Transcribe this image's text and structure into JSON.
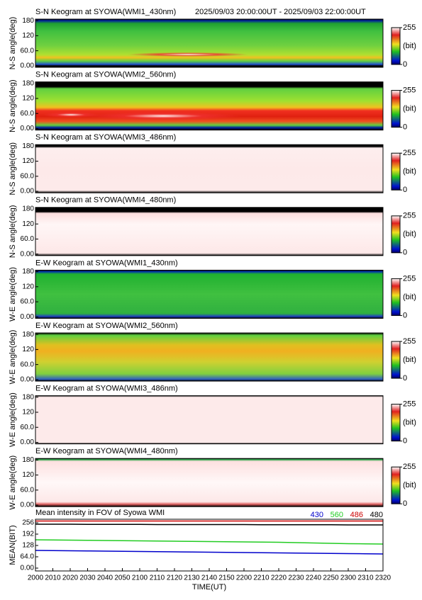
{
  "chart_data": [
    {
      "type": "heatmap",
      "title": "S-N Keogram at SYOWA(WMI1_430nm)",
      "subtitle": "2025/09/03 20:00:00UT - 2025/09/03 22:00:00UT",
      "ylabel": "N-S angle(deg)",
      "ylim": [
        -6,
        186
      ],
      "yticks": [
        {
          "value": 0,
          "label": "0.00"
        },
        {
          "value": 60,
          "label": "60.0"
        },
        120,
        180
      ],
      "colorbar": {
        "label": "(bit)",
        "lim": [
          0,
          255
        ],
        "ticks": [
          0,
          255
        ]
      }
    },
    {
      "type": "heatmap",
      "title": "S-N Keogram at SYOWA(WMI2_560nm)",
      "ylabel": "N-S angle(deg)",
      "ylim": [
        -6,
        186
      ],
      "yticks": [
        {
          "value": 0,
          "label": "0.00"
        },
        {
          "value": 60,
          "label": "60.0"
        },
        120,
        180
      ],
      "colorbar": {
        "label": "(bit)",
        "lim": [
          0,
          255
        ],
        "ticks": [
          0,
          255
        ]
      }
    },
    {
      "type": "heatmap",
      "title": "S-N Keogram at SYOWA(WMI3_486nm)",
      "ylabel": "N-S angle(deg)",
      "ylim": [
        -6,
        186
      ],
      "yticks": [
        {
          "value": 0,
          "label": "0.00"
        },
        {
          "value": 60,
          "label": "60.0"
        },
        120,
        180
      ],
      "colorbar": {
        "label": "(bit)",
        "lim": [
          0,
          255
        ],
        "ticks": [
          0,
          255
        ]
      }
    },
    {
      "type": "heatmap",
      "title": "S-N Keogram at SYOWA(WMI4_480nm)",
      "ylabel": "N-S angle(deg)",
      "ylim": [
        -6,
        186
      ],
      "yticks": [
        {
          "value": 0,
          "label": "0.00"
        },
        {
          "value": 60,
          "label": "60.0"
        },
        120,
        180
      ],
      "colorbar": {
        "label": "(bit)",
        "lim": [
          0,
          255
        ],
        "ticks": [
          0,
          255
        ]
      }
    },
    {
      "type": "heatmap",
      "title": "E-W Keogram at SYOWA(WMI1_430nm)",
      "ylabel": "W-E angle(deg)",
      "ylim": [
        -6,
        186
      ],
      "yticks": [
        {
          "value": 0,
          "label": "0.00"
        },
        {
          "value": 60,
          "label": "60.0"
        },
        120,
        180
      ],
      "colorbar": {
        "label": "(bit)",
        "lim": [
          0,
          255
        ],
        "ticks": [
          0,
          255
        ]
      }
    },
    {
      "type": "heatmap",
      "title": "E-W Keogram at SYOWA(WMI2_560nm)",
      "ylabel": "W-E angle(deg)",
      "ylim": [
        -6,
        186
      ],
      "yticks": [
        {
          "value": 0,
          "label": "0.00"
        },
        {
          "value": 60,
          "label": "60.0"
        },
        120,
        180
      ],
      "colorbar": {
        "label": "(bit)",
        "lim": [
          0,
          255
        ],
        "ticks": [
          0,
          255
        ]
      }
    },
    {
      "type": "heatmap",
      "title": "E-W Keogram at SYOWA(WMI3_486nm)",
      "ylabel": "W-E angle(deg)",
      "ylim": [
        -6,
        186
      ],
      "yticks": [
        {
          "value": 0,
          "label": "0.00"
        },
        {
          "value": 60,
          "label": "60.0"
        },
        120,
        180
      ],
      "colorbar": {
        "label": "(bit)",
        "lim": [
          0,
          255
        ],
        "ticks": [
          0,
          255
        ]
      }
    },
    {
      "type": "heatmap",
      "title": "E-W Keogram at SYOWA(WMI4_480nm)",
      "ylabel": "W-E angle(deg)",
      "ylim": [
        -6,
        186
      ],
      "yticks": [
        {
          "value": 0,
          "label": "0.00"
        },
        {
          "value": 60,
          "label": "60.0"
        },
        120,
        180
      ],
      "colorbar": {
        "label": "(bit)",
        "lim": [
          0,
          255
        ],
        "ticks": [
          0,
          255
        ]
      }
    },
    {
      "type": "line",
      "title": "Mean intensity in FOV of Syowa WMI",
      "xlabel": "TIME(UT)",
      "ylabel": "MEAN(BIT)",
      "x": [
        "2000",
        "2010",
        "2020",
        "2030",
        "2040",
        "2050",
        "2100",
        "2110",
        "2120",
        "2130",
        "2140",
        "2150",
        "2200",
        "2210",
        "2220",
        "2230",
        "2240",
        "2250",
        "2300",
        "2310",
        "2320"
      ],
      "ylim": [
        -16,
        276
      ],
      "yticks": [
        {
          "value": 0,
          "label": "0.00"
        },
        {
          "value": 64,
          "label": "64.0"
        },
        128,
        192,
        256
      ],
      "series": [
        {
          "name": "430",
          "color": "#0000cc",
          "values": [
            100,
            99,
            98,
            97,
            96,
            95,
            94,
            93,
            92,
            91,
            90,
            89,
            88,
            87,
            86,
            85,
            84,
            83,
            82,
            81,
            80
          ]
        },
        {
          "name": "560",
          "color": "#22cc22",
          "values": [
            160,
            159,
            158,
            157,
            156,
            155,
            154,
            153,
            152,
            151,
            150,
            149,
            148,
            147,
            146,
            144,
            142,
            140,
            138,
            137,
            136
          ]
        },
        {
          "name": "486",
          "color": "#cc0000",
          "values": [
            266,
            266,
            266,
            266,
            266,
            266,
            266,
            266,
            266,
            266,
            266,
            266,
            266,
            266,
            266,
            266,
            266,
            266,
            266,
            266,
            266
          ]
        },
        {
          "name": "480",
          "color": "#000000",
          "values": [
            248,
            248,
            248,
            247,
            247,
            247,
            247,
            246,
            246,
            246,
            246,
            246,
            246,
            245,
            245,
            245,
            245,
            245,
            244,
            244,
            244
          ]
        }
      ]
    }
  ]
}
